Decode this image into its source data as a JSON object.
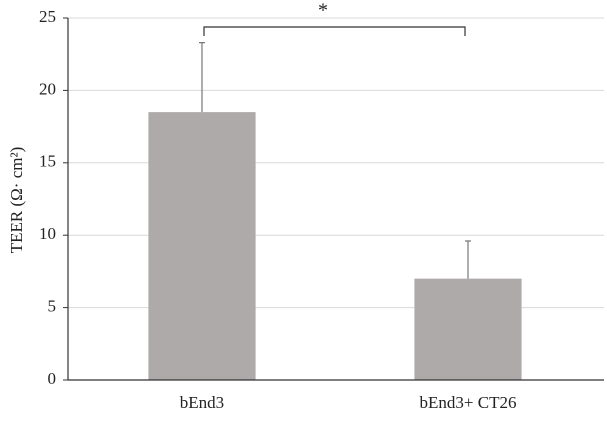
{
  "chart_data": {
    "type": "bar",
    "y_label": "TEER (Ω· cm²)",
    "categories": [
      "bEnd3",
      "bEnd3+ CT26"
    ],
    "values": [
      18.5,
      7.0
    ],
    "errors": [
      4.8,
      2.6
    ],
    "color": "#aeaaaa",
    "ylim": [
      0,
      25
    ],
    "yticks": [
      0,
      5,
      10,
      15,
      20,
      25
    ],
    "grid": true,
    "annotation": "*"
  }
}
